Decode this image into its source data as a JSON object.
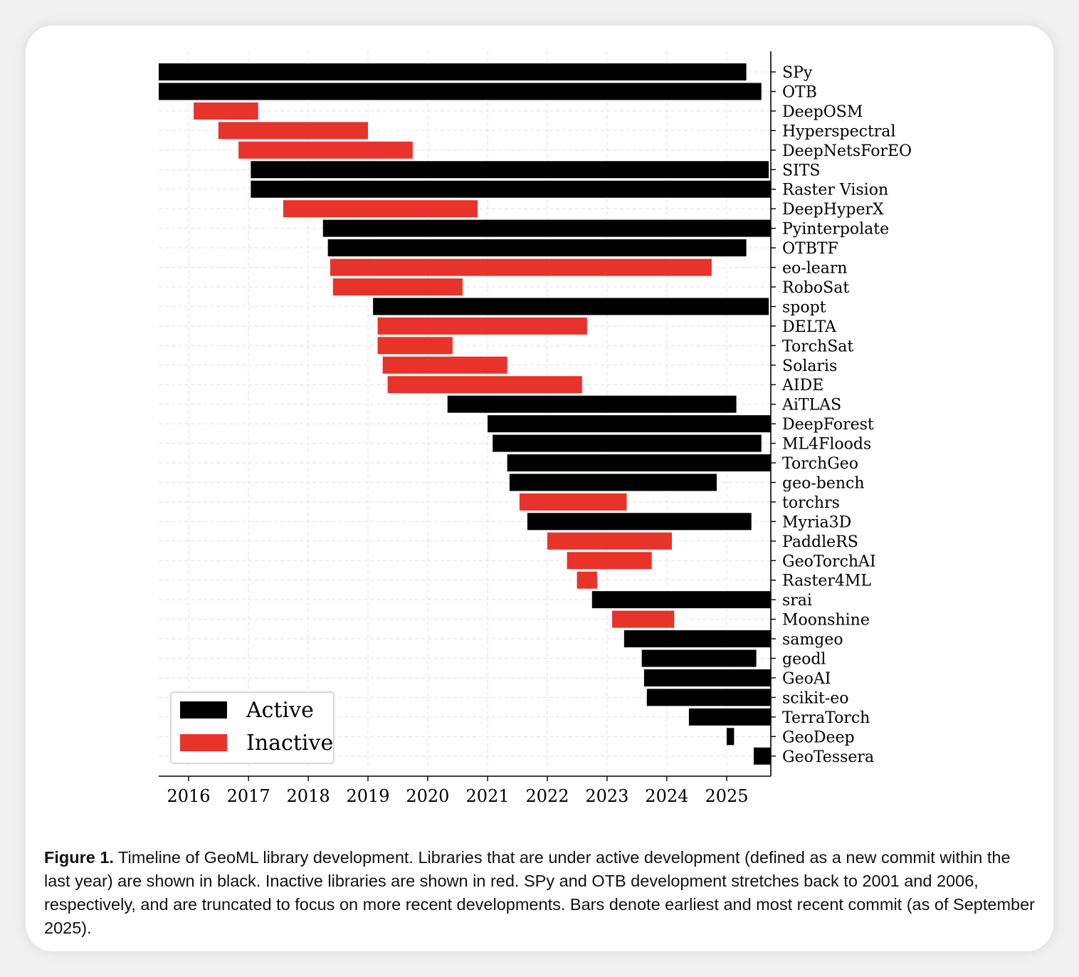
{
  "chart_data": {
    "type": "bar",
    "orientation": "horizontal",
    "xlim": [
      "2015-06-01",
      "2025-09-30"
    ],
    "x_ticks": [
      "2016",
      "2017",
      "2018",
      "2019",
      "2020",
      "2021",
      "2022",
      "2023",
      "2024",
      "2025"
    ],
    "grid": true,
    "legend_position": "bottom-left",
    "legend": [
      {
        "label": "Active",
        "color": "#000000"
      },
      {
        "label": "Inactive",
        "color": "#e8332a"
      }
    ],
    "bars": [
      {
        "label": "SPy",
        "start": "2015-06-01",
        "end": "2025-05-01",
        "status": "Active"
      },
      {
        "label": "OTB",
        "start": "2015-06-01",
        "end": "2025-08-01",
        "status": "Active"
      },
      {
        "label": "DeepOSM",
        "start": "2016-02-01",
        "end": "2017-03-01",
        "status": "Inactive"
      },
      {
        "label": "Hyperspectral",
        "start": "2016-07-01",
        "end": "2019-01-01",
        "status": "Inactive"
      },
      {
        "label": "DeepNetsForEO",
        "start": "2016-11-01",
        "end": "2019-10-01",
        "status": "Inactive"
      },
      {
        "label": "SITS",
        "start": "2017-01-15",
        "end": "2025-09-15",
        "status": "Active"
      },
      {
        "label": "Raster Vision",
        "start": "2017-01-15",
        "end": "2025-09-30",
        "status": "Active"
      },
      {
        "label": "DeepHyperX",
        "start": "2017-08-01",
        "end": "2020-11-01",
        "status": "Inactive"
      },
      {
        "label": "Pyinterpolate",
        "start": "2018-04-01",
        "end": "2025-09-30",
        "status": "Active"
      },
      {
        "label": "OTBTF",
        "start": "2018-05-01",
        "end": "2025-05-01",
        "status": "Active"
      },
      {
        "label": "eo-learn",
        "start": "2018-05-15",
        "end": "2024-10-01",
        "status": "Inactive"
      },
      {
        "label": "RoboSat",
        "start": "2018-06-01",
        "end": "2020-08-01",
        "status": "Inactive"
      },
      {
        "label": "spopt",
        "start": "2019-02-01",
        "end": "2025-09-15",
        "status": "Active"
      },
      {
        "label": "DELTA",
        "start": "2019-03-01",
        "end": "2022-09-01",
        "status": "Inactive"
      },
      {
        "label": "TorchSat",
        "start": "2019-03-01",
        "end": "2020-06-01",
        "status": "Inactive"
      },
      {
        "label": "Solaris",
        "start": "2019-04-01",
        "end": "2021-05-01",
        "status": "Inactive"
      },
      {
        "label": "AIDE",
        "start": "2019-05-01",
        "end": "2022-08-01",
        "status": "Inactive"
      },
      {
        "label": "AiTLAS",
        "start": "2020-05-01",
        "end": "2025-03-01",
        "status": "Active"
      },
      {
        "label": "DeepForest",
        "start": "2021-01-01",
        "end": "2025-09-30",
        "status": "Active"
      },
      {
        "label": "ML4Floods",
        "start": "2021-02-01",
        "end": "2025-08-01",
        "status": "Active"
      },
      {
        "label": "TorchGeo",
        "start": "2021-05-01",
        "end": "2025-09-30",
        "status": "Active"
      },
      {
        "label": "geo-bench",
        "start": "2021-05-15",
        "end": "2024-11-01",
        "status": "Active"
      },
      {
        "label": "torchrs",
        "start": "2021-07-15",
        "end": "2023-05-01",
        "status": "Inactive"
      },
      {
        "label": "Myria3D",
        "start": "2021-09-01",
        "end": "2025-06-01",
        "status": "Active"
      },
      {
        "label": "PaddleRS",
        "start": "2022-01-01",
        "end": "2024-02-01",
        "status": "Inactive"
      },
      {
        "label": "GeoTorchAI",
        "start": "2022-05-01",
        "end": "2023-10-01",
        "status": "Inactive"
      },
      {
        "label": "Raster4ML",
        "start": "2022-07-01",
        "end": "2022-11-01",
        "status": "Inactive"
      },
      {
        "label": "srai",
        "start": "2022-10-01",
        "end": "2025-09-30",
        "status": "Active"
      },
      {
        "label": "Moonshine",
        "start": "2023-02-01",
        "end": "2024-02-15",
        "status": "Inactive"
      },
      {
        "label": "samgeo",
        "start": "2023-04-15",
        "end": "2025-09-30",
        "status": "Active"
      },
      {
        "label": "geodl",
        "start": "2023-08-01",
        "end": "2025-07-01",
        "status": "Active"
      },
      {
        "label": "GeoAI",
        "start": "2023-08-15",
        "end": "2025-09-30",
        "status": "Active"
      },
      {
        "label": "scikit-eo",
        "start": "2023-09-01",
        "end": "2025-09-30",
        "status": "Active"
      },
      {
        "label": "TerraTorch",
        "start": "2024-05-15",
        "end": "2025-09-30",
        "status": "Active"
      },
      {
        "label": "GeoDeep",
        "start": "2025-01-01",
        "end": "2025-02-15",
        "status": "Active"
      },
      {
        "label": "GeoTessera",
        "start": "2025-06-15",
        "end": "2025-09-30",
        "status": "Active"
      }
    ]
  },
  "caption": {
    "label": "Figure 1.",
    "text": " Timeline of GeoML library development. Libraries that are under active development (defined as a new commit within the last year) are shown in black.  Inactive libraries are shown in red.  SPy and OTB development stretches back to 2001 and 2006, respectively, and are truncated to focus on more recent developments.  Bars denote earliest and most recent commit (as of September 2025)."
  }
}
